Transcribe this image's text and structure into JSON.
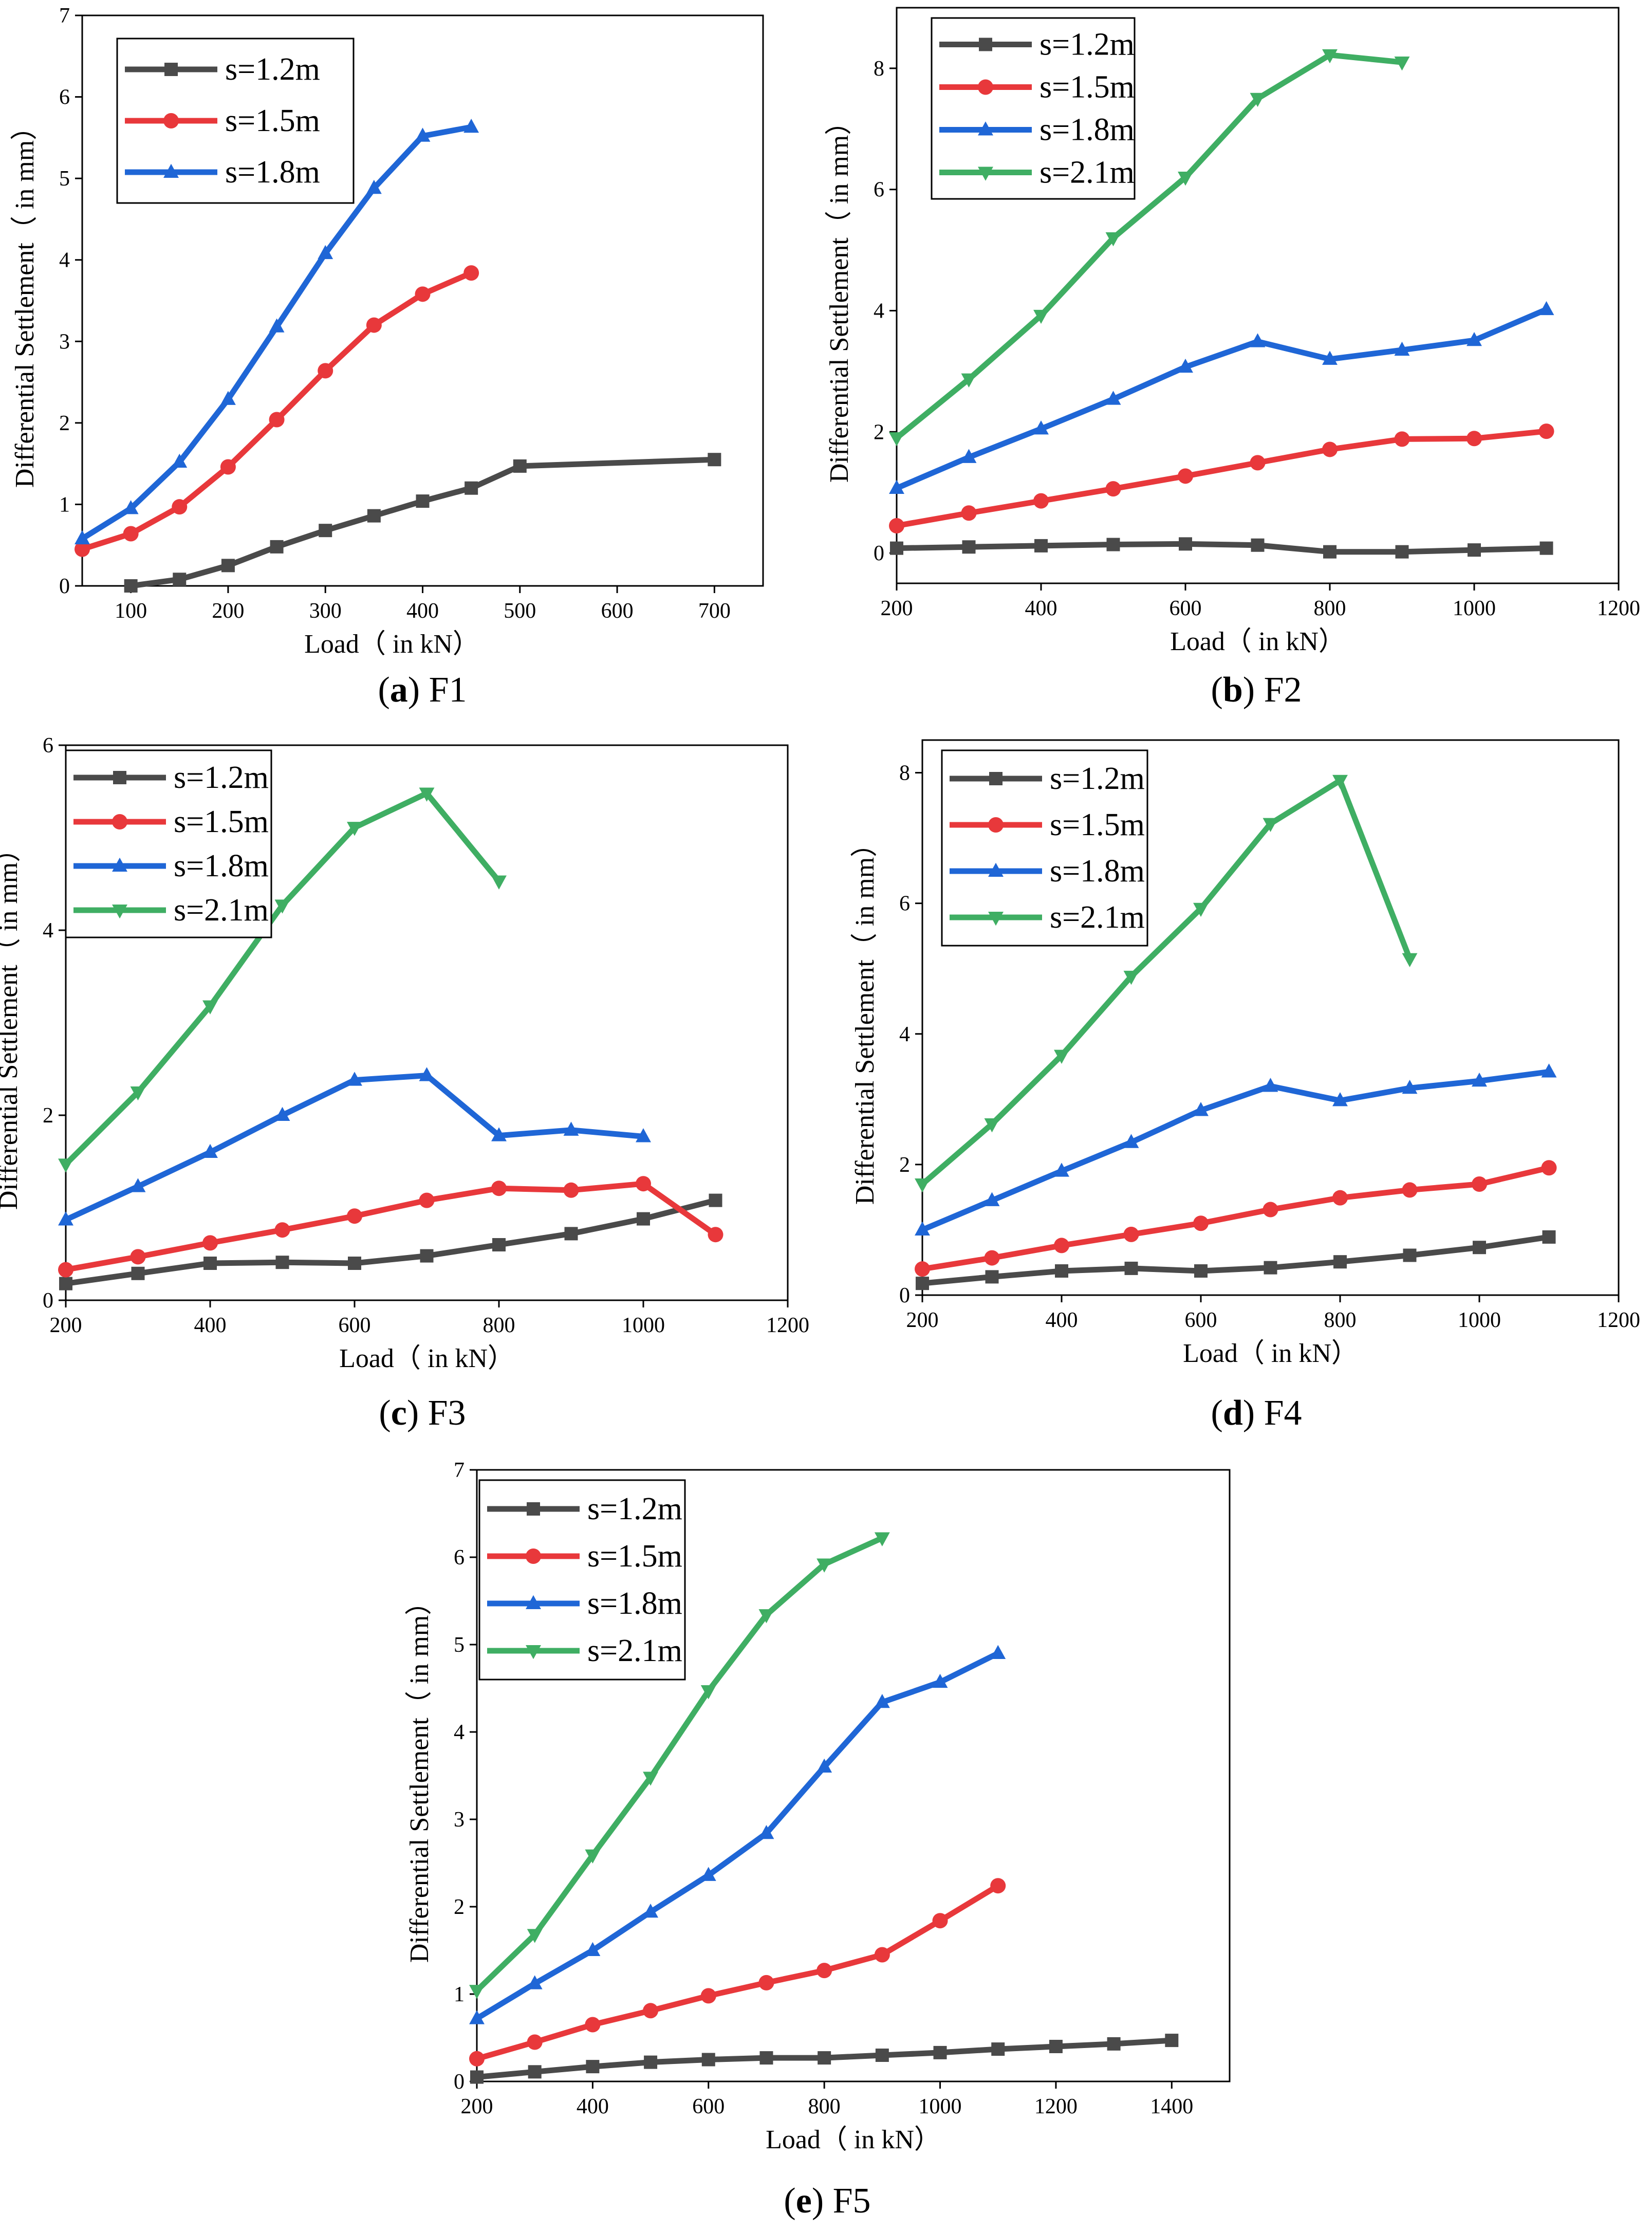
{
  "colors": {
    "s12": "#4a4a4a",
    "s15": "#e8383b",
    "s18": "#1f66d6",
    "s21": "#3fae63"
  },
  "chart_data": [
    {
      "id": "a",
      "type": "line",
      "caption_letter": "a",
      "caption_name": "F1",
      "xlabel": "Load（ in kN）",
      "ylabel": "Differential Settlement（ in mm）",
      "xlim": [
        50,
        750
      ],
      "ylim": [
        0,
        7
      ],
      "xticks": [
        100,
        200,
        300,
        400,
        500,
        600,
        700
      ],
      "yticks": [
        0,
        1,
        2,
        3,
        4,
        5,
        6,
        7
      ],
      "legend_position": "top-left",
      "series": [
        {
          "name": "s=1.2m",
          "key": "s12",
          "marker": "square",
          "x": [
            100,
            150,
            200,
            250,
            300,
            350,
            400,
            450,
            500,
            700
          ],
          "y": [
            0.0,
            0.08,
            0.25,
            0.48,
            0.68,
            0.86,
            1.04,
            1.2,
            1.47,
            1.55
          ]
        },
        {
          "name": "s=1.5m",
          "key": "s15",
          "marker": "circle",
          "x": [
            50,
            100,
            150,
            200,
            250,
            300,
            350,
            400,
            450
          ],
          "y": [
            0.45,
            0.64,
            0.97,
            1.46,
            2.04,
            2.64,
            3.2,
            3.58,
            3.84
          ]
        },
        {
          "name": "s=1.8m",
          "key": "s18",
          "marker": "triangle-up",
          "x": [
            50,
            100,
            150,
            200,
            250,
            300,
            350,
            400,
            450
          ],
          "y": [
            0.58,
            0.95,
            1.52,
            2.29,
            3.18,
            4.08,
            4.88,
            5.52,
            5.63
          ]
        }
      ]
    },
    {
      "id": "b",
      "type": "line",
      "caption_letter": "b",
      "caption_name": "F2",
      "xlabel": "Load（ in kN）",
      "ylabel": "Differential Settlement（ in mm）",
      "xlim": [
        200,
        1200
      ],
      "ylim": [
        -0.5,
        9
      ],
      "xticks": [
        200,
        400,
        600,
        800,
        1000,
        1200
      ],
      "yticks": [
        0,
        2,
        4,
        6,
        8
      ],
      "legend_position": "top-left",
      "series": [
        {
          "name": "s=1.2m",
          "key": "s12",
          "marker": "square",
          "x": [
            200,
            300,
            400,
            500,
            600,
            700,
            800,
            900,
            1000,
            1100
          ],
          "y": [
            0.08,
            0.1,
            0.12,
            0.14,
            0.15,
            0.13,
            0.02,
            0.02,
            0.05,
            0.08
          ]
        },
        {
          "name": "s=1.5m",
          "key": "s15",
          "marker": "circle",
          "x": [
            200,
            300,
            400,
            500,
            600,
            700,
            800,
            900,
            1000,
            1100
          ],
          "y": [
            0.45,
            0.66,
            0.86,
            1.06,
            1.27,
            1.49,
            1.71,
            1.88,
            1.89,
            2.01
          ]
        },
        {
          "name": "s=1.8m",
          "key": "s18",
          "marker": "triangle-up",
          "x": [
            200,
            300,
            400,
            500,
            600,
            700,
            800,
            900,
            1000,
            1100
          ],
          "y": [
            1.07,
            1.58,
            2.05,
            2.54,
            3.07,
            3.49,
            3.2,
            3.35,
            3.51,
            4.02
          ]
        },
        {
          "name": "s=2.1m",
          "key": "s21",
          "marker": "triangle-down",
          "x": [
            200,
            300,
            400,
            500,
            600,
            700,
            800,
            900
          ],
          "y": [
            1.9,
            2.87,
            3.92,
            5.2,
            6.2,
            7.5,
            8.22,
            8.1
          ]
        }
      ]
    },
    {
      "id": "c",
      "type": "line",
      "caption_letter": "c",
      "caption_name": "F3",
      "xlabel": "Load（ in kN）",
      "ylabel": "Differential Settlement（ in mm）",
      "xlim": [
        200,
        1200
      ],
      "ylim": [
        0,
        6
      ],
      "xticks": [
        200,
        400,
        600,
        800,
        1000,
        1200
      ],
      "yticks": [
        0,
        2,
        4,
        6
      ],
      "legend_position": "top-left",
      "series": [
        {
          "name": "s=1.2m",
          "key": "s12",
          "marker": "square",
          "x": [
            200,
            300,
            400,
            500,
            600,
            700,
            800,
            900,
            1000,
            1100
          ],
          "y": [
            0.18,
            0.29,
            0.4,
            0.41,
            0.4,
            0.48,
            0.6,
            0.72,
            0.88,
            1.08
          ]
        },
        {
          "name": "s=1.5m",
          "key": "s15",
          "marker": "circle",
          "x": [
            200,
            300,
            400,
            500,
            600,
            700,
            800,
            900,
            1000,
            1100
          ],
          "y": [
            0.33,
            0.47,
            0.62,
            0.76,
            0.91,
            1.08,
            1.21,
            1.19,
            1.26,
            0.71
          ]
        },
        {
          "name": "s=1.8m",
          "key": "s18",
          "marker": "triangle-up",
          "x": [
            200,
            300,
            400,
            500,
            600,
            700,
            800,
            900,
            1000
          ],
          "y": [
            0.87,
            1.23,
            1.6,
            2.0,
            2.38,
            2.43,
            1.78,
            1.84,
            1.77
          ]
        },
        {
          "name": "s=2.1m",
          "key": "s21",
          "marker": "triangle-down",
          "x": [
            200,
            300,
            400,
            500,
            600,
            700,
            800
          ],
          "y": [
            1.47,
            2.25,
            3.18,
            4.27,
            5.11,
            5.48,
            4.53
          ]
        }
      ]
    },
    {
      "id": "d",
      "type": "line",
      "caption_letter": "d",
      "caption_name": "F4",
      "xlabel": "Load（ in kN）",
      "ylabel": "Differential Settlement（ in mm）",
      "xlim": [
        200,
        1200
      ],
      "ylim": [
        0,
        8.5
      ],
      "xticks": [
        200,
        400,
        600,
        800,
        1000,
        1200
      ],
      "yticks": [
        0,
        2,
        4,
        6,
        8
      ],
      "legend_position": "top-left",
      "series": [
        {
          "name": "s=1.2m",
          "key": "s12",
          "marker": "square",
          "x": [
            200,
            300,
            400,
            500,
            600,
            700,
            800,
            900,
            1000,
            1100
          ],
          "y": [
            0.18,
            0.28,
            0.37,
            0.41,
            0.37,
            0.42,
            0.51,
            0.61,
            0.73,
            0.89
          ]
        },
        {
          "name": "s=1.5m",
          "key": "s15",
          "marker": "circle",
          "x": [
            200,
            300,
            400,
            500,
            600,
            700,
            800,
            900,
            1000,
            1100
          ],
          "y": [
            0.4,
            0.57,
            0.76,
            0.93,
            1.1,
            1.31,
            1.49,
            1.61,
            1.7,
            1.95
          ]
        },
        {
          "name": "s=1.8m",
          "key": "s18",
          "marker": "triangle-up",
          "x": [
            200,
            300,
            400,
            500,
            600,
            700,
            800,
            900,
            1000,
            1100
          ],
          "y": [
            1.0,
            1.45,
            1.9,
            2.34,
            2.83,
            3.2,
            2.98,
            3.17,
            3.28,
            3.42
          ]
        },
        {
          "name": "s=2.1m",
          "key": "s21",
          "marker": "triangle-down",
          "x": [
            200,
            300,
            400,
            500,
            600,
            700,
            800,
            900
          ],
          "y": [
            1.7,
            2.62,
            3.67,
            4.88,
            5.92,
            7.22,
            7.88,
            5.15
          ]
        }
      ]
    },
    {
      "id": "e",
      "type": "line",
      "caption_letter": "e",
      "caption_name": "F5",
      "xlabel": "Load（ in kN）",
      "ylabel": "Differential Settlement（ in mm）",
      "xlim": [
        200,
        1500
      ],
      "ylim": [
        0,
        7
      ],
      "xticks": [
        200,
        400,
        600,
        800,
        1000,
        1200,
        1400
      ],
      "yticks": [
        0,
        1,
        2,
        3,
        4,
        5,
        6,
        7
      ],
      "legend_position": "top-left",
      "series": [
        {
          "name": "s=1.2m",
          "key": "s12",
          "marker": "square",
          "x": [
            200,
            300,
            400,
            500,
            600,
            700,
            800,
            900,
            1000,
            1100,
            1200,
            1300,
            1400
          ],
          "y": [
            0.05,
            0.11,
            0.17,
            0.22,
            0.25,
            0.27,
            0.27,
            0.3,
            0.33,
            0.37,
            0.4,
            0.43,
            0.47
          ]
        },
        {
          "name": "s=1.5m",
          "key": "s15",
          "marker": "circle",
          "x": [
            200,
            300,
            400,
            500,
            600,
            700,
            800,
            900,
            1000,
            1100
          ],
          "y": [
            0.26,
            0.45,
            0.65,
            0.81,
            0.98,
            1.13,
            1.27,
            1.45,
            1.84,
            2.24
          ]
        },
        {
          "name": "s=1.8m",
          "key": "s18",
          "marker": "triangle-up",
          "x": [
            200,
            300,
            400,
            500,
            600,
            700,
            800,
            900,
            1000,
            1100
          ],
          "y": [
            0.72,
            1.12,
            1.5,
            1.94,
            2.36,
            2.84,
            3.6,
            4.34,
            4.57,
            4.9
          ]
        },
        {
          "name": "s=2.1m",
          "key": "s21",
          "marker": "triangle-down",
          "x": [
            200,
            300,
            400,
            500,
            600,
            700,
            800,
            900
          ],
          "y": [
            1.04,
            1.68,
            2.59,
            3.48,
            4.47,
            5.34,
            5.92,
            6.22
          ]
        }
      ]
    }
  ]
}
